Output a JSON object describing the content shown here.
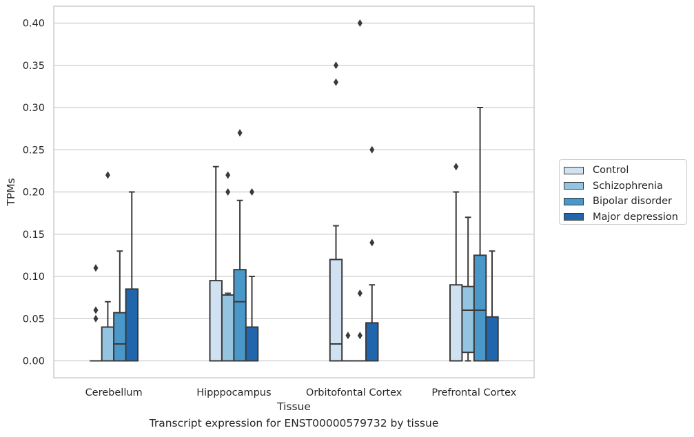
{
  "chart_data": {
    "type": "box",
    "caption": "Transcript expression for ENST00000579732 by tissue",
    "xlabel": "Tissue",
    "ylabel": "TPMs",
    "ylim": [
      -0.02,
      0.42
    ],
    "yticks": [
      "0.00",
      "0.05",
      "0.10",
      "0.15",
      "0.20",
      "0.25",
      "0.30",
      "0.35",
      "0.40"
    ],
    "ytick_values": [
      0,
      0.05,
      0.1,
      0.15,
      0.2,
      0.25,
      0.3,
      0.35,
      0.4
    ],
    "categories": [
      "Cerebellum",
      "Hipppocampus",
      "Orbitofontal Cortex",
      "Prefrontal Cortex"
    ],
    "grid": "horizontal",
    "legend_position": "right",
    "series": [
      {
        "name": "Control",
        "color": "#d0e1f2",
        "boxes": [
          {
            "q1": 0,
            "median": 0,
            "q3": 0,
            "whislo": 0,
            "whishi": 0,
            "fliers": [
              0.05,
              0.06,
              0.11
            ]
          },
          {
            "q1": 0,
            "median": 0,
            "q3": 0.095,
            "whislo": 0,
            "whishi": 0.23,
            "fliers": []
          },
          {
            "q1": 0,
            "median": 0.02,
            "q3": 0.12,
            "whislo": 0,
            "whishi": 0.16,
            "fliers": [
              0.33,
              0.35
            ]
          },
          {
            "q1": 0,
            "median": 0,
            "q3": 0.09,
            "whislo": 0,
            "whishi": 0.2,
            "fliers": [
              0.23
            ]
          }
        ]
      },
      {
        "name": "Schizophrenia",
        "color": "#94c4df",
        "boxes": [
          {
            "q1": 0,
            "median": 0,
            "q3": 0.04,
            "whislo": 0,
            "whishi": 0.07,
            "fliers": [
              0.22
            ]
          },
          {
            "q1": 0,
            "median": 0,
            "q3": 0.078,
            "whislo": 0,
            "whishi": 0.08,
            "fliers": [
              0.2,
              0.22
            ]
          },
          {
            "q1": 0,
            "median": 0,
            "q3": 0,
            "whislo": 0,
            "whishi": 0,
            "fliers": [
              0.03
            ]
          },
          {
            "q1": 0.01,
            "median": 0.06,
            "q3": 0.088,
            "whislo": 0,
            "whishi": 0.17,
            "fliers": []
          }
        ]
      },
      {
        "name": "Bipolar disorder",
        "color": "#4a98c9",
        "boxes": [
          {
            "q1": 0,
            "median": 0.02,
            "q3": 0.057,
            "whislo": 0,
            "whishi": 0.13,
            "fliers": []
          },
          {
            "q1": 0,
            "median": 0.07,
            "q3": 0.108,
            "whislo": 0,
            "whishi": 0.19,
            "fliers": [
              0.27
            ]
          },
          {
            "q1": 0,
            "median": 0,
            "q3": 0,
            "whislo": 0,
            "whishi": 0,
            "fliers": [
              0.03,
              0.08,
              0.4
            ]
          },
          {
            "q1": 0,
            "median": 0.06,
            "q3": 0.125,
            "whislo": 0,
            "whishi": 0.3,
            "fliers": []
          }
        ]
      },
      {
        "name": "Major depression",
        "color": "#2166ac",
        "boxes": [
          {
            "q1": 0,
            "median": 0,
            "q3": 0.085,
            "whislo": 0,
            "whishi": 0.2,
            "fliers": []
          },
          {
            "q1": 0,
            "median": 0,
            "q3": 0.04,
            "whislo": 0,
            "whishi": 0.1,
            "fliers": [
              0.2
            ]
          },
          {
            "q1": 0,
            "median": 0,
            "q3": 0.045,
            "whislo": 0,
            "whishi": 0.09,
            "fliers": [
              0.14,
              0.25
            ]
          },
          {
            "q1": 0,
            "median": 0,
            "q3": 0.052,
            "whislo": 0,
            "whishi": 0.13,
            "fliers": []
          }
        ]
      }
    ]
  }
}
